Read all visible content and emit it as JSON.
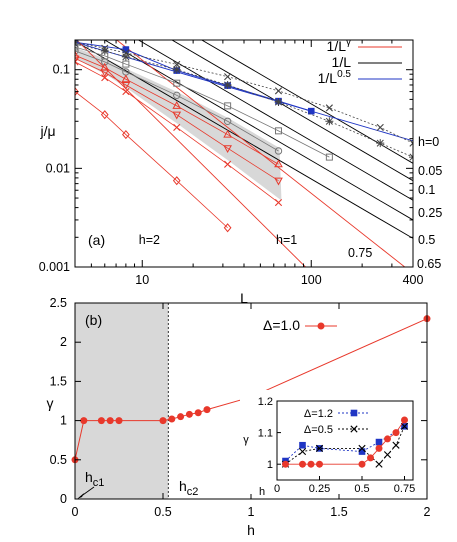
{
  "chart_data": [
    {
      "panel_label": "(a)",
      "type": "line",
      "x_scale": "log",
      "y_scale": "log",
      "xlim": [
        4,
        400
      ],
      "ylim": [
        0.001,
        0.2
      ],
      "xlabel": "L",
      "ylabel": "j/μ",
      "x_ticks": [
        "10",
        "100",
        "400"
      ],
      "y_ticks": [
        "0.001",
        "0.01",
        "0.1"
      ],
      "legend": {
        "placement": "top-right",
        "entries": [
          {
            "label": "1/L",
            "sup": "γ",
            "color": "#e8382b"
          },
          {
            "label": "1/L",
            "sup": "",
            "color": "#000000"
          },
          {
            "label": "1/L",
            "sup": "0.5",
            "color": "#1f35c4"
          }
        ]
      },
      "h_labels": [
        {
          "text": "h=0",
          "color": "#1f35c4"
        },
        {
          "text": "0.05",
          "color": "#000000"
        },
        {
          "text": "0.1",
          "color": "#000000"
        },
        {
          "text": "0.25",
          "color": "#000000"
        },
        {
          "text": "0.5",
          "color": "#000000"
        },
        {
          "text": "0.65",
          "color": "#e8382b"
        },
        {
          "text": "0.75",
          "color": "#e8382b"
        },
        {
          "text": "h=1",
          "color": "#e8382b"
        },
        {
          "text": "h=2",
          "color": "#e8382b"
        }
      ],
      "series": [
        {
          "h": "0",
          "marker": "filled-square",
          "color": "#1f35c4",
          "x": [
            4,
            8,
            16,
            32,
            64,
            100
          ],
          "y": [
            0.19,
            0.16,
            0.098,
            0.069,
            0.048,
            0.038
          ]
        },
        {
          "h": "0.05",
          "marker": "x",
          "color": "#444444",
          "x": [
            4,
            6,
            8,
            16,
            32,
            64,
            128,
            256,
            400
          ],
          "y": [
            0.19,
            0.165,
            0.148,
            0.113,
            0.085,
            0.061,
            0.041,
            0.026,
            0.018
          ]
        },
        {
          "h": "0.1",
          "marker": "star",
          "color": "#444444",
          "x": [
            4,
            6,
            8,
            16,
            32,
            64,
            128,
            256,
            400
          ],
          "y": [
            0.182,
            0.155,
            0.135,
            0.1,
            0.07,
            0.047,
            0.03,
            0.018,
            0.013
          ]
        },
        {
          "h": "0.25",
          "marker": "square",
          "color": "#777777",
          "x": [
            4,
            6,
            8,
            16,
            32,
            64,
            128
          ],
          "y": [
            0.17,
            0.138,
            0.114,
            0.073,
            0.043,
            0.024,
            0.013
          ]
        },
        {
          "h": "0.5",
          "marker": "circle",
          "color": "#777777",
          "x": [
            4,
            6,
            8,
            16,
            32,
            64
          ],
          "y": [
            0.155,
            0.12,
            0.095,
            0.055,
            0.03,
            0.015
          ]
        },
        {
          "h": "0.65",
          "marker": "triangle-up",
          "color": "#e8382b",
          "x": [
            4,
            6,
            8,
            16,
            32,
            64
          ],
          "y": [
            0.14,
            0.105,
            0.08,
            0.043,
            0.022,
            0.011
          ]
        },
        {
          "h": "0.75",
          "marker": "triangle-down",
          "color": "#e8382b",
          "x": [
            4,
            6,
            8,
            16,
            32,
            64
          ],
          "y": [
            0.13,
            0.094,
            0.07,
            0.035,
            0.016,
            0.0075
          ]
        },
        {
          "h": "1",
          "marker": "x",
          "color": "#e8382b",
          "x": [
            4,
            6,
            8,
            16,
            32,
            64
          ],
          "y": [
            0.12,
            0.083,
            0.06,
            0.026,
            0.011,
            0.0045
          ]
        },
        {
          "h": "2",
          "marker": "diamond",
          "color": "#e8382b",
          "x": [
            4,
            6,
            8,
            16,
            32
          ],
          "y": [
            0.06,
            0.035,
            0.022,
            0.0075,
            0.0025
          ]
        }
      ]
    },
    {
      "panel_label": "(b)",
      "type": "line",
      "xlim": [
        0,
        2
      ],
      "ylim": [
        0,
        2.5
      ],
      "xlabel": "h",
      "ylabel": "γ",
      "x_ticks": [
        "0",
        "0.5",
        "1",
        "1.5",
        "2"
      ],
      "y_ticks": [
        "0",
        "0.5",
        "1",
        "1.5",
        "2",
        "2.5"
      ],
      "shaded_region": [
        0,
        0.53
      ],
      "annotations": [
        {
          "text": "h",
          "sub": "c1"
        },
        {
          "text": "h",
          "sub": "c2"
        }
      ],
      "series": [
        {
          "name": "Δ=1.0",
          "color": "#e8382b",
          "marker": "filled-circle",
          "x": [
            0,
            0.05,
            0.15,
            0.2,
            0.25,
            0.5,
            0.55,
            0.6,
            0.65,
            0.7,
            0.75,
            1.0,
            2.0
          ],
          "y": [
            0.5,
            1.0,
            1.0,
            1.0,
            1.0,
            1.0,
            1.02,
            1.05,
            1.08,
            1.1,
            1.14,
            1.3,
            2.3
          ]
        }
      ],
      "inset": {
        "xlim": [
          0,
          0.8
        ],
        "ylim": [
          0.95,
          1.2
        ],
        "xlabel": "h",
        "ylabel": "γ",
        "x_ticks": [
          "0",
          "0.25",
          "0.5",
          "0.75"
        ],
        "y_ticks": [
          "1",
          "1.1",
          "1.2"
        ],
        "series": [
          {
            "name": "Δ=1.2",
            "color": "#1f35c4",
            "marker": "filled-square",
            "x": [
              0.05,
              0.15,
              0.25,
              0.5,
              0.6,
              0.75
            ],
            "y": [
              1.01,
              1.06,
              1.05,
              1.04,
              1.07,
              1.12
            ]
          },
          {
            "name": "Δ=0.5",
            "color": "#000000",
            "marker": "x",
            "x": [
              0.05,
              0.15,
              0.25,
              0.5,
              0.6,
              0.65,
              0.7,
              0.75
            ],
            "y": [
              1.0,
              1.04,
              1.05,
              1.05,
              1.0,
              1.03,
              1.06,
              1.12
            ]
          },
          {
            "name": "",
            "color": "#e8382b",
            "marker": "filled-circle",
            "x": [
              0.05,
              0.15,
              0.2,
              0.25,
              0.5,
              0.55,
              0.6,
              0.65,
              0.7,
              0.75
            ],
            "y": [
              1.0,
              1.0,
              1.0,
              1.0,
              1.0,
              1.02,
              1.05,
              1.08,
              1.1,
              1.14
            ]
          }
        ]
      }
    }
  ]
}
